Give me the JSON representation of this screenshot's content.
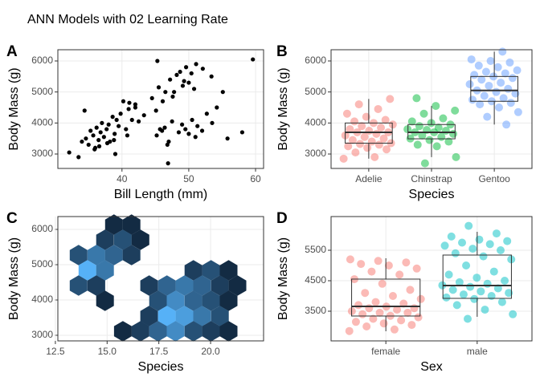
{
  "title": "ANN Models with 02 Learning Rate",
  "chart_data": [
    {
      "type": "scatter",
      "tag": "A",
      "x_label": "Bill Length (mm)",
      "y_label": "Body Mass (g)",
      "color": "#000000",
      "grid": true,
      "xlim": [
        30.4,
        61.2
      ],
      "ylim": [
        2535,
        6362
      ],
      "xticks": [
        40,
        50,
        60
      ],
      "yticks": [
        3000,
        4000,
        5000,
        6000
      ],
      "x": [
        32.1,
        33.5,
        34.0,
        34.6,
        35.0,
        35.3,
        35.7,
        36.0,
        36.2,
        36.5,
        36.8,
        37.0,
        37.3,
        37.7,
        38.0,
        38.2,
        38.6,
        38.9,
        39.2,
        39.5,
        39.8,
        40.2,
        40.6,
        41.0,
        41.1,
        41.5,
        42.0,
        42.5,
        35.9,
        37.8,
        39.0,
        40.8,
        34.4,
        36.6,
        38.8,
        45.2,
        46.0,
        46.4,
        47.0,
        47.5,
        48.5,
        49.0,
        49.5,
        50.0,
        50.5,
        51.0,
        51.3,
        52.0,
        52.7,
        53.5,
        54.2,
        55.8,
        58.0,
        45.7,
        46.8,
        46.9,
        42.0,
        43.3,
        44.5,
        45.1,
        45.5,
        46.1,
        46.5,
        47.2,
        47.6,
        48.2,
        48.7,
        49.1,
        49.6,
        50.0,
        50.4,
        51.1,
        52.1,
        53.4,
        55.1,
        59.6,
        45.3,
        47.8,
        49.3,
        50.8
      ],
      "y": [
        3050,
        2900,
        3400,
        3500,
        3300,
        3750,
        3600,
        3200,
        3850,
        3450,
        3700,
        4000,
        3550,
        3800,
        3950,
        3400,
        4200,
        3650,
        4100,
        3900,
        4300,
        4700,
        3800,
        4450,
        4650,
        4100,
        4500,
        4050,
        3150,
        3350,
        3000,
        3600,
        4400,
        3250,
        3450,
        3600,
        3750,
        3850,
        3400,
        4050,
        3700,
        3950,
        3800,
        3650,
        4100,
        3550,
        3900,
        3750,
        4300,
        4000,
        4500,
        3500,
        3700,
        3800,
        3300,
        2700,
        4600,
        4250,
        4800,
        4400,
        5150,
        4700,
        5000,
        5400,
        4850,
        5550,
        5650,
        5200,
        5800,
        5300,
        5600,
        5900,
        5750,
        5500,
        5000,
        6050,
        6000,
        5000,
        5350,
        5100
      ]
    },
    {
      "type": "box",
      "tag": "B",
      "x_label": "Species",
      "y_label": "Body Mass (g)",
      "grid": true,
      "ylim": [
        2535,
        6362
      ],
      "yticks": [
        3000,
        4000,
        5000,
        6000
      ],
      "categories": [
        "Adelie",
        "Chinstrap",
        "Gentoo"
      ],
      "colors": [
        "#F8766D",
        "#00BA38",
        "#619CFF"
      ],
      "box": {
        "low": [
          2850,
          2900,
          3950
        ],
        "q1": [
          3350,
          3490,
          4700
        ],
        "median": [
          3700,
          3700,
          5050
        ],
        "q3": [
          4000,
          3950,
          5500
        ],
        "high": [
          4775,
          4550,
          6300
        ]
      },
      "points": [
        [
          2850,
          2900,
          3050,
          3150,
          3200,
          3250,
          3300,
          3325,
          3350,
          3400,
          3450,
          3500,
          3550,
          3600,
          3650,
          3700,
          3700,
          3750,
          3800,
          3850,
          3900,
          3950,
          4000,
          4050,
          4100,
          4200,
          4300,
          4450,
          4600,
          4775
        ],
        [
          2700,
          2900,
          3250,
          3300,
          3400,
          3450,
          3500,
          3550,
          3600,
          3650,
          3700,
          3700,
          3750,
          3775,
          3800,
          3850,
          3900,
          3950,
          4000,
          4050,
          4150,
          4300,
          4400,
          4550,
          4800
        ],
        [
          3950,
          4200,
          4350,
          4500,
          4600,
          4650,
          4700,
          4750,
          4800,
          4875,
          4950,
          5000,
          5050,
          5100,
          5200,
          5250,
          5300,
          5400,
          5450,
          5500,
          5550,
          5600,
          5650,
          5700,
          5800,
          5850,
          5950,
          6000,
          6050,
          6300
        ]
      ]
    },
    {
      "type": "hexbin",
      "tag": "C",
      "x_label": "Species",
      "y_label": "Body Mass (g)",
      "grid": true,
      "xlim": [
        12.62,
        22.56
      ],
      "ylim": [
        2841,
        6364
      ],
      "xticks": [
        12.5,
        {
          "value": 15,
          "label": "15.0"
        },
        17.5,
        {
          "value": 20,
          "label": "20.0"
        }
      ],
      "yticks": [
        3000,
        4000,
        5000,
        6000
      ],
      "low_color": "#132B43",
      "high_color": "#56B1F7",
      "x": [
        15.33,
        16.18,
        14.9,
        15.76,
        16.61,
        13.62,
        14.48,
        15.33,
        16.18,
        14.05,
        14.9,
        19.17,
        20.02,
        20.87,
        13.62,
        14.48,
        17.03,
        17.89,
        18.74,
        19.59,
        20.45,
        21.3,
        14.9,
        17.46,
        18.31,
        19.17,
        20.02,
        20.87,
        17.03,
        17.89,
        18.74,
        19.59,
        20.45,
        15.76,
        16.61,
        17.46,
        18.31,
        19.17,
        20.02,
        20.87
      ],
      "y": [
        6136,
        6136,
        5705,
        5705,
        5705,
        5273,
        5273,
        5273,
        5273,
        4841,
        4841,
        4841,
        4841,
        4841,
        4409,
        4409,
        4409,
        4409,
        4409,
        4409,
        4409,
        4409,
        3977,
        3977,
        3977,
        3977,
        3977,
        3977,
        3545,
        3545,
        3545,
        3545,
        3545,
        3114,
        3114,
        3114,
        3114,
        3114,
        3114,
        3114
      ],
      "values": [
        1,
        1,
        2,
        3,
        1,
        3,
        5,
        4,
        2,
        8,
        5,
        2,
        3,
        1,
        3,
        2,
        2,
        4,
        5,
        4,
        2,
        1,
        1,
        3,
        6,
        4,
        3,
        1,
        2,
        8,
        7,
        5,
        3,
        1,
        2,
        4,
        6,
        3,
        2,
        1
      ]
    },
    {
      "type": "box",
      "tag": "D",
      "x_label": "Sex",
      "y_label": "Body Mass (g)",
      "grid": true,
      "ylim": [
        2526,
        6605
      ],
      "yticks": [
        3500,
        4500,
        5500
      ],
      "categories": [
        "female",
        "male"
      ],
      "colors": [
        "#F8766D",
        "#00BFC4"
      ],
      "box": {
        "low": [
          2842,
          3316
        ],
        "q1": [
          3342,
          3921
        ],
        "median": [
          3658,
          4342
        ],
        "q3": [
          4553,
          5342
        ],
        "high": [
          5237,
          6105
        ]
      },
      "points": [
        [
          2850,
          2900,
          3000,
          3050,
          3100,
          3150,
          3200,
          3250,
          3300,
          3350,
          3400,
          3450,
          3450,
          3500,
          3550,
          3600,
          3600,
          3650,
          3700,
          3750,
          3800,
          3900,
          4000,
          4100,
          4200,
          4400,
          4550,
          4700,
          4800,
          4900,
          5000,
          5050,
          5100,
          5150,
          5200
        ],
        [
          3250,
          3400,
          3550,
          3700,
          3800,
          3900,
          3950,
          4000,
          4050,
          4100,
          4150,
          4200,
          4250,
          4300,
          4350,
          4400,
          4450,
          4500,
          4600,
          4700,
          4800,
          5000,
          5200,
          5300,
          5400,
          5500,
          5550,
          5650,
          5700,
          5750,
          5800,
          5850,
          5950,
          6050,
          6300
        ]
      ]
    }
  ]
}
